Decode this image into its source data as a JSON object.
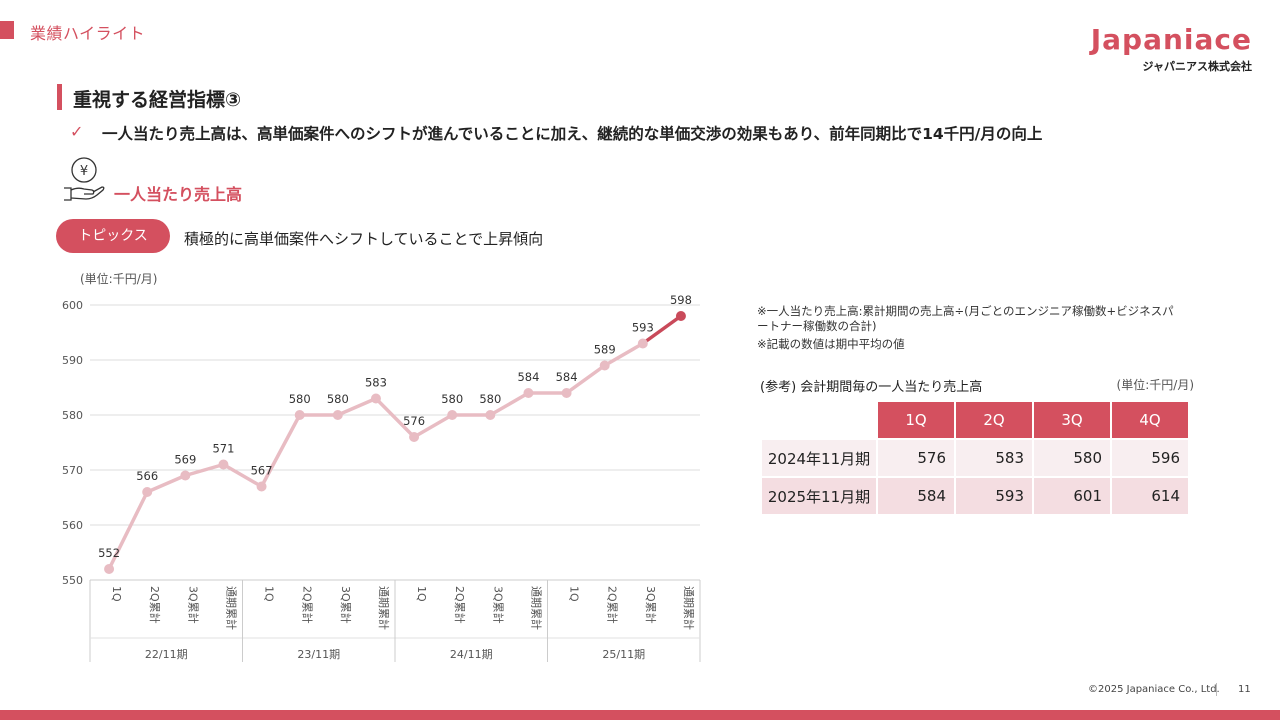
{
  "header": {
    "section": "業績ハイライト",
    "logo_name": "Japaniace",
    "logo_sub": "ジャパニアス株式会社"
  },
  "title": "重視する経営指標③",
  "bullet": "一人当たり売上高は、高単価案件へのシフトが進んでいることに加え、継続的な単価交渉の効果もあり、前年同期比で14千円/月の向上",
  "metric_label": "一人当たり売上高",
  "topics": {
    "label": "トピックス",
    "text": "積極的に高単価案件へシフトしていることで上昇傾向"
  },
  "colors": {
    "accent": "#d4505f",
    "line_past": "#e8bcc3",
    "line_recent": "#c94a5a"
  },
  "chart_data": {
    "type": "line",
    "unit_label": "(単位:千円/月)",
    "ylim": [
      550,
      600
    ],
    "yticks": [
      550,
      560,
      570,
      580,
      590,
      600
    ],
    "categories": [
      "1Q",
      "2Q累計",
      "3Q累計",
      "通期累計",
      "1Q",
      "2Q累計",
      "3Q累計",
      "通期累計",
      "1Q",
      "2Q累計",
      "3Q累計",
      "通期累計",
      "1Q",
      "2Q累計",
      "3Q累計",
      "通期累計"
    ],
    "groups": [
      {
        "label": "22/11期",
        "count": 4
      },
      {
        "label": "23/11期",
        "count": 4
      },
      {
        "label": "24/11期",
        "count": 4
      },
      {
        "label": "25/11期",
        "count": 4
      }
    ],
    "values": [
      552,
      566,
      569,
      571,
      567,
      580,
      580,
      583,
      576,
      580,
      580,
      584,
      584,
      589,
      593,
      598
    ],
    "grid": true
  },
  "notes": {
    "note1": "※一人当たり売上高:累計期間の売上高÷(月ごとのエンジニア稼働数+ビジネスパートナー稼働数の合計)",
    "note2": "※記載の数値は期中平均の値"
  },
  "ref_table": {
    "caption": "(参考) 会計期間毎の一人当たり売上高",
    "unit": "(単位:千円/月)",
    "headers": [
      "1Q",
      "2Q",
      "3Q",
      "4Q"
    ],
    "rows": [
      {
        "label": "2024年11月期",
        "values": [
          "576",
          "583",
          "580",
          "596"
        ]
      },
      {
        "label": "2025年11月期",
        "values": [
          "584",
          "593",
          "601",
          "614"
        ]
      }
    ]
  },
  "footer": {
    "copyright": "©2025 Japaniace Co., Ltd.",
    "page": "11"
  }
}
